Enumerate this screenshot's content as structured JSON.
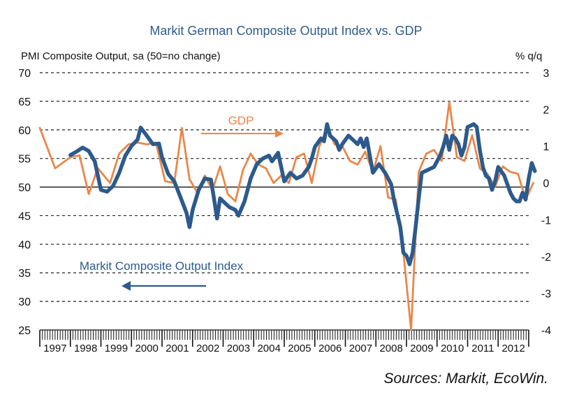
{
  "chart_data": {
    "type": "line",
    "title": "Markit German Composite Output Index vs. GDP",
    "left_axis": {
      "label": "PMI Composite Output, sa (50=no change)",
      "ylim": [
        25,
        70
      ],
      "ticks": [
        25,
        30,
        35,
        40,
        45,
        50,
        55,
        60,
        65,
        70
      ]
    },
    "right_axis": {
      "label": "% q/q",
      "ylim": [
        -4,
        3
      ],
      "ticks": [
        -4,
        -3,
        -2,
        -1,
        0,
        1,
        2,
        3
      ]
    },
    "x_axis": {
      "year_labels": [
        "1997",
        "1998",
        "1999",
        "2000",
        "2001",
        "2002",
        "2003",
        "2004",
        "2005",
        "2006",
        "2007",
        "2008",
        "2009",
        "2010",
        "2011",
        "2012"
      ],
      "start_year": 1997,
      "end_year": 2013
    },
    "grid": "horizontal dashed",
    "series": [
      {
        "name": "Markit Composite Output Index",
        "axis": "left",
        "color": "#2c5a8c",
        "points": [
          [
            1998.0,
            55.6
          ],
          [
            1998.2,
            56.2
          ],
          [
            1998.4,
            56.9
          ],
          [
            1998.6,
            56.3
          ],
          [
            1998.8,
            54.5
          ],
          [
            1999.0,
            49.5
          ],
          [
            1999.2,
            49.2
          ],
          [
            1999.4,
            50.2
          ],
          [
            1999.6,
            52.5
          ],
          [
            1999.8,
            55.5
          ],
          [
            2000.0,
            57.2
          ],
          [
            2000.2,
            58.3
          ],
          [
            2000.3,
            60.4
          ],
          [
            2000.5,
            59.0
          ],
          [
            2000.7,
            57.5
          ],
          [
            2000.9,
            57.6
          ],
          [
            2001.0,
            55.2
          ],
          [
            2001.2,
            52.3
          ],
          [
            2001.4,
            51.0
          ],
          [
            2001.6,
            48.3
          ],
          [
            2001.8,
            45.5
          ],
          [
            2001.9,
            43.0
          ],
          [
            2002.0,
            46.0
          ],
          [
            2002.2,
            49.5
          ],
          [
            2002.4,
            51.5
          ],
          [
            2002.6,
            51.3
          ],
          [
            2002.7,
            48.0
          ],
          [
            2002.8,
            44.5
          ],
          [
            2002.9,
            48.0
          ],
          [
            2003.0,
            47.5
          ],
          [
            2003.2,
            46.5
          ],
          [
            2003.4,
            46.0
          ],
          [
            2003.5,
            45.0
          ],
          [
            2003.7,
            47.5
          ],
          [
            2003.9,
            51.5
          ],
          [
            2004.1,
            54.0
          ],
          [
            2004.3,
            55.0
          ],
          [
            2004.5,
            55.5
          ],
          [
            2004.6,
            54.5
          ],
          [
            2004.8,
            56.0
          ],
          [
            2004.9,
            53.5
          ],
          [
            2005.0,
            51.0
          ],
          [
            2005.2,
            52.5
          ],
          [
            2005.4,
            51.5
          ],
          [
            2005.6,
            52.0
          ],
          [
            2005.8,
            53.5
          ],
          [
            2005.9,
            55.0
          ],
          [
            2006.0,
            57.0
          ],
          [
            2006.2,
            58.5
          ],
          [
            2006.3,
            58.0
          ],
          [
            2006.4,
            61.0
          ],
          [
            2006.5,
            59.0
          ],
          [
            2006.7,
            58.0
          ],
          [
            2006.8,
            56.5
          ],
          [
            2006.9,
            57.5
          ],
          [
            2007.1,
            59.0
          ],
          [
            2007.3,
            58.0
          ],
          [
            2007.4,
            57.5
          ],
          [
            2007.5,
            58.5
          ],
          [
            2007.6,
            57.0
          ],
          [
            2007.7,
            58.5
          ],
          [
            2007.8,
            55.5
          ],
          [
            2007.9,
            52.5
          ],
          [
            2008.1,
            54.0
          ],
          [
            2008.3,
            52.5
          ],
          [
            2008.5,
            50.5
          ],
          [
            2008.6,
            47.5
          ],
          [
            2008.8,
            43.0
          ],
          [
            2008.9,
            38.5
          ],
          [
            2009.0,
            38.0
          ],
          [
            2009.1,
            36.5
          ],
          [
            2009.2,
            38.5
          ],
          [
            2009.3,
            43.0
          ],
          [
            2009.4,
            48.0
          ],
          [
            2009.5,
            52.5
          ],
          [
            2009.7,
            53.0
          ],
          [
            2009.9,
            53.5
          ],
          [
            2010.1,
            55.5
          ],
          [
            2010.2,
            57.0
          ],
          [
            2010.3,
            59.0
          ],
          [
            2010.4,
            56.5
          ],
          [
            2010.5,
            59.0
          ],
          [
            2010.6,
            58.5
          ],
          [
            2010.7,
            57.5
          ],
          [
            2010.8,
            55.5
          ],
          [
            2010.9,
            57.0
          ],
          [
            2011.0,
            60.5
          ],
          [
            2011.2,
            61.0
          ],
          [
            2011.3,
            60.5
          ],
          [
            2011.4,
            56.5
          ],
          [
            2011.5,
            53.5
          ],
          [
            2011.6,
            52.0
          ],
          [
            2011.7,
            51.5
          ],
          [
            2011.8,
            49.5
          ],
          [
            2011.9,
            51.0
          ],
          [
            2012.0,
            53.5
          ],
          [
            2012.2,
            52.0
          ],
          [
            2012.3,
            50.5
          ],
          [
            2012.4,
            49.0
          ],
          [
            2012.5,
            48.0
          ],
          [
            2012.6,
            47.5
          ],
          [
            2012.7,
            47.5
          ],
          [
            2012.8,
            49.0
          ],
          [
            2012.9,
            47.8
          ],
          [
            2013.0,
            51.5
          ],
          [
            2013.1,
            54.2
          ],
          [
            2013.2,
            52.8
          ]
        ]
      },
      {
        "name": "GDP",
        "axis": "right",
        "color": "#e8874a",
        "points": [
          [
            1997.0,
            1.5
          ],
          [
            1997.5,
            0.4
          ],
          [
            1998.0,
            0.7
          ],
          [
            1998.3,
            0.75
          ],
          [
            1998.6,
            -0.3
          ],
          [
            1998.9,
            0.4
          ],
          [
            1999.3,
            0.0
          ],
          [
            1999.6,
            0.8
          ],
          [
            1999.9,
            1.05
          ],
          [
            2000.2,
            1.1
          ],
          [
            2000.5,
            1.05
          ],
          [
            2000.8,
            1.1
          ],
          [
            2001.1,
            0.05
          ],
          [
            2001.4,
            0.0
          ],
          [
            2001.65,
            1.5
          ],
          [
            2001.9,
            0.1
          ],
          [
            2002.15,
            -0.25
          ],
          [
            2002.4,
            0.2
          ],
          [
            2002.65,
            -0.2
          ],
          [
            2002.9,
            0.45
          ],
          [
            2003.15,
            -0.3
          ],
          [
            2003.4,
            -0.5
          ],
          [
            2003.65,
            0.35
          ],
          [
            2003.9,
            0.8
          ],
          [
            2004.15,
            0.5
          ],
          [
            2004.4,
            0.4
          ],
          [
            2004.65,
            0.0
          ],
          [
            2004.9,
            0.2
          ],
          [
            2005.15,
            0.0
          ],
          [
            2005.4,
            0.7
          ],
          [
            2005.65,
            0.8
          ],
          [
            2005.9,
            0.0
          ],
          [
            2006.15,
            1.0
          ],
          [
            2006.4,
            1.5
          ],
          [
            2006.65,
            1.05
          ],
          [
            2006.9,
            1.0
          ],
          [
            2007.15,
            0.6
          ],
          [
            2007.4,
            0.5
          ],
          [
            2007.65,
            0.85
          ],
          [
            2007.9,
            0.3
          ],
          [
            2008.15,
            1.0
          ],
          [
            2008.4,
            -0.4
          ],
          [
            2008.65,
            -0.45
          ],
          [
            2008.9,
            -1.9
          ],
          [
            2009.15,
            -4.0
          ],
          [
            2009.4,
            0.3
          ],
          [
            2009.65,
            0.8
          ],
          [
            2009.9,
            0.9
          ],
          [
            2010.15,
            0.6
          ],
          [
            2010.4,
            2.2
          ],
          [
            2010.65,
            0.7
          ],
          [
            2010.9,
            0.6
          ],
          [
            2011.15,
            1.3
          ],
          [
            2011.4,
            0.4
          ],
          [
            2011.65,
            0.25
          ],
          [
            2011.9,
            -0.1
          ],
          [
            2012.15,
            0.45
          ],
          [
            2012.4,
            0.3
          ],
          [
            2012.65,
            0.25
          ],
          [
            2012.9,
            -0.45
          ],
          [
            2013.15,
            0.0
          ]
        ]
      }
    ],
    "annotations": [
      {
        "text": "GDP",
        "color": "#e8874a",
        "arrow": "right"
      },
      {
        "text": "Markit Composite Output Index",
        "color": "#2c5a8c",
        "arrow": "left"
      }
    ],
    "source_note": "Sources: Markit, EcoWin."
  }
}
